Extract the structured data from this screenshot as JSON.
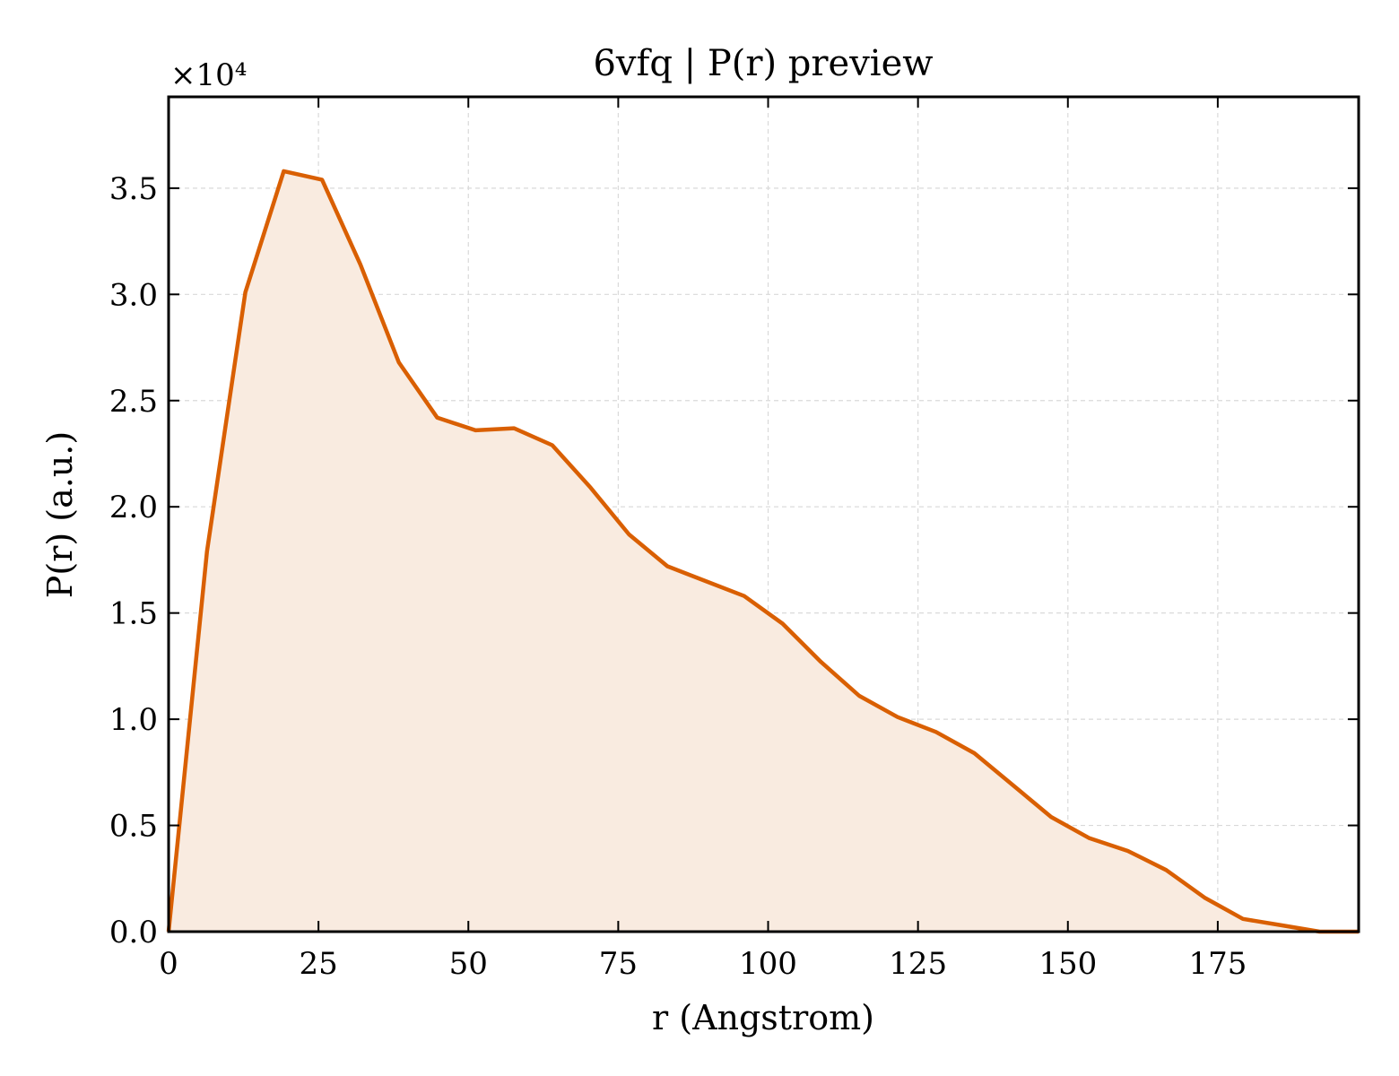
{
  "chart_data": {
    "type": "area",
    "title": "6vfq | P(r) preview",
    "xlabel": "r (Angstrom)",
    "ylabel": "P(r) (a.u.)",
    "y_offset_label": "×10⁴",
    "xlim": [
      0,
      198.5
    ],
    "ylim": [
      0,
      3.93
    ],
    "x_ticks": [
      0,
      25,
      50,
      75,
      100,
      125,
      150,
      175
    ],
    "x_tick_labels": [
      "0",
      "25",
      "50",
      "75",
      "100",
      "125",
      "150",
      "175"
    ],
    "y_ticks": [
      0,
      0.5,
      1.0,
      1.5,
      2.0,
      2.5,
      3.0,
      3.5
    ],
    "y_tick_labels": [
      "0.0",
      "0.5",
      "1.0",
      "1.5",
      "2.0",
      "2.5",
      "3.0",
      "3.5"
    ],
    "grid": true,
    "line_color": "#d95f02",
    "fill_color": "#f9ebe0",
    "series": [
      {
        "x": [
          0,
          6.4,
          12.8,
          19.2,
          25.6,
          32.0,
          38.4,
          44.8,
          51.2,
          57.6,
          64.0,
          70.4,
          76.8,
          83.2,
          89.6,
          96.0,
          102.4,
          108.8,
          115.2,
          121.6,
          128.0,
          134.4,
          140.8,
          147.2,
          153.6,
          160.0,
          166.4,
          172.8,
          179.2,
          185.6,
          192.0,
          198.5
        ],
        "values": [
          0,
          1.79,
          3.01,
          3.58,
          3.54,
          3.14,
          2.68,
          2.42,
          2.36,
          2.37,
          2.29,
          2.09,
          1.87,
          1.72,
          1.65,
          1.58,
          1.45,
          1.27,
          1.11,
          1.01,
          0.94,
          0.84,
          0.69,
          0.54,
          0.44,
          0.38,
          0.29,
          0.16,
          0.06,
          0.03,
          0.0,
          0.0
        ]
      }
    ]
  }
}
